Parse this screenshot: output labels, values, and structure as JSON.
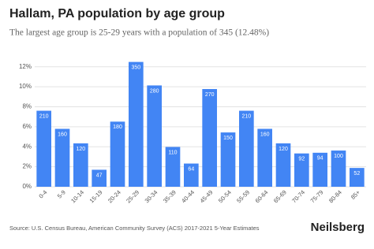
{
  "chart_data": {
    "type": "bar",
    "title": "Hallam, PA population by age group",
    "subtitle": "The largest age group is 25-29 years with a population of 345 (12.48%)",
    "categories": [
      "0-4",
      "5-9",
      "10-14",
      "15-19",
      "20-24",
      "25-29",
      "30-34",
      "35-39",
      "40-44",
      "45-49",
      "50-54",
      "55-59",
      "60-64",
      "65-69",
      "70-74",
      "75-79",
      "80-84",
      "85+"
    ],
    "values": [
      7.6,
      5.79,
      4.34,
      1.7,
      6.51,
      12.48,
      10.13,
      3.98,
      2.32,
      9.77,
      5.43,
      7.6,
      5.79,
      4.34,
      3.33,
      3.4,
      3.62,
      1.88
    ],
    "data_labels": [
      210,
      160,
      120,
      47,
      180,
      350,
      280,
      110,
      64,
      270,
      150,
      210,
      160,
      120,
      92,
      94,
      100,
      52
    ],
    "color": "#4285f4",
    "ylim": [
      0,
      13
    ],
    "yticks": [
      {
        "value": 0,
        "label": "0%"
      },
      {
        "value": 2,
        "label": "2%"
      },
      {
        "value": 4,
        "label": "4%"
      },
      {
        "value": 6,
        "label": "6%"
      },
      {
        "value": 8,
        "label": "8%"
      },
      {
        "value": 10,
        "label": "10%"
      },
      {
        "value": 12,
        "label": "12%"
      }
    ],
    "grid": true,
    "source": "Source: U.S. Census Bureau, American Community Survey (ACS) 2017-2021 5-Year Estimates",
    "brand": "Neilsberg"
  }
}
